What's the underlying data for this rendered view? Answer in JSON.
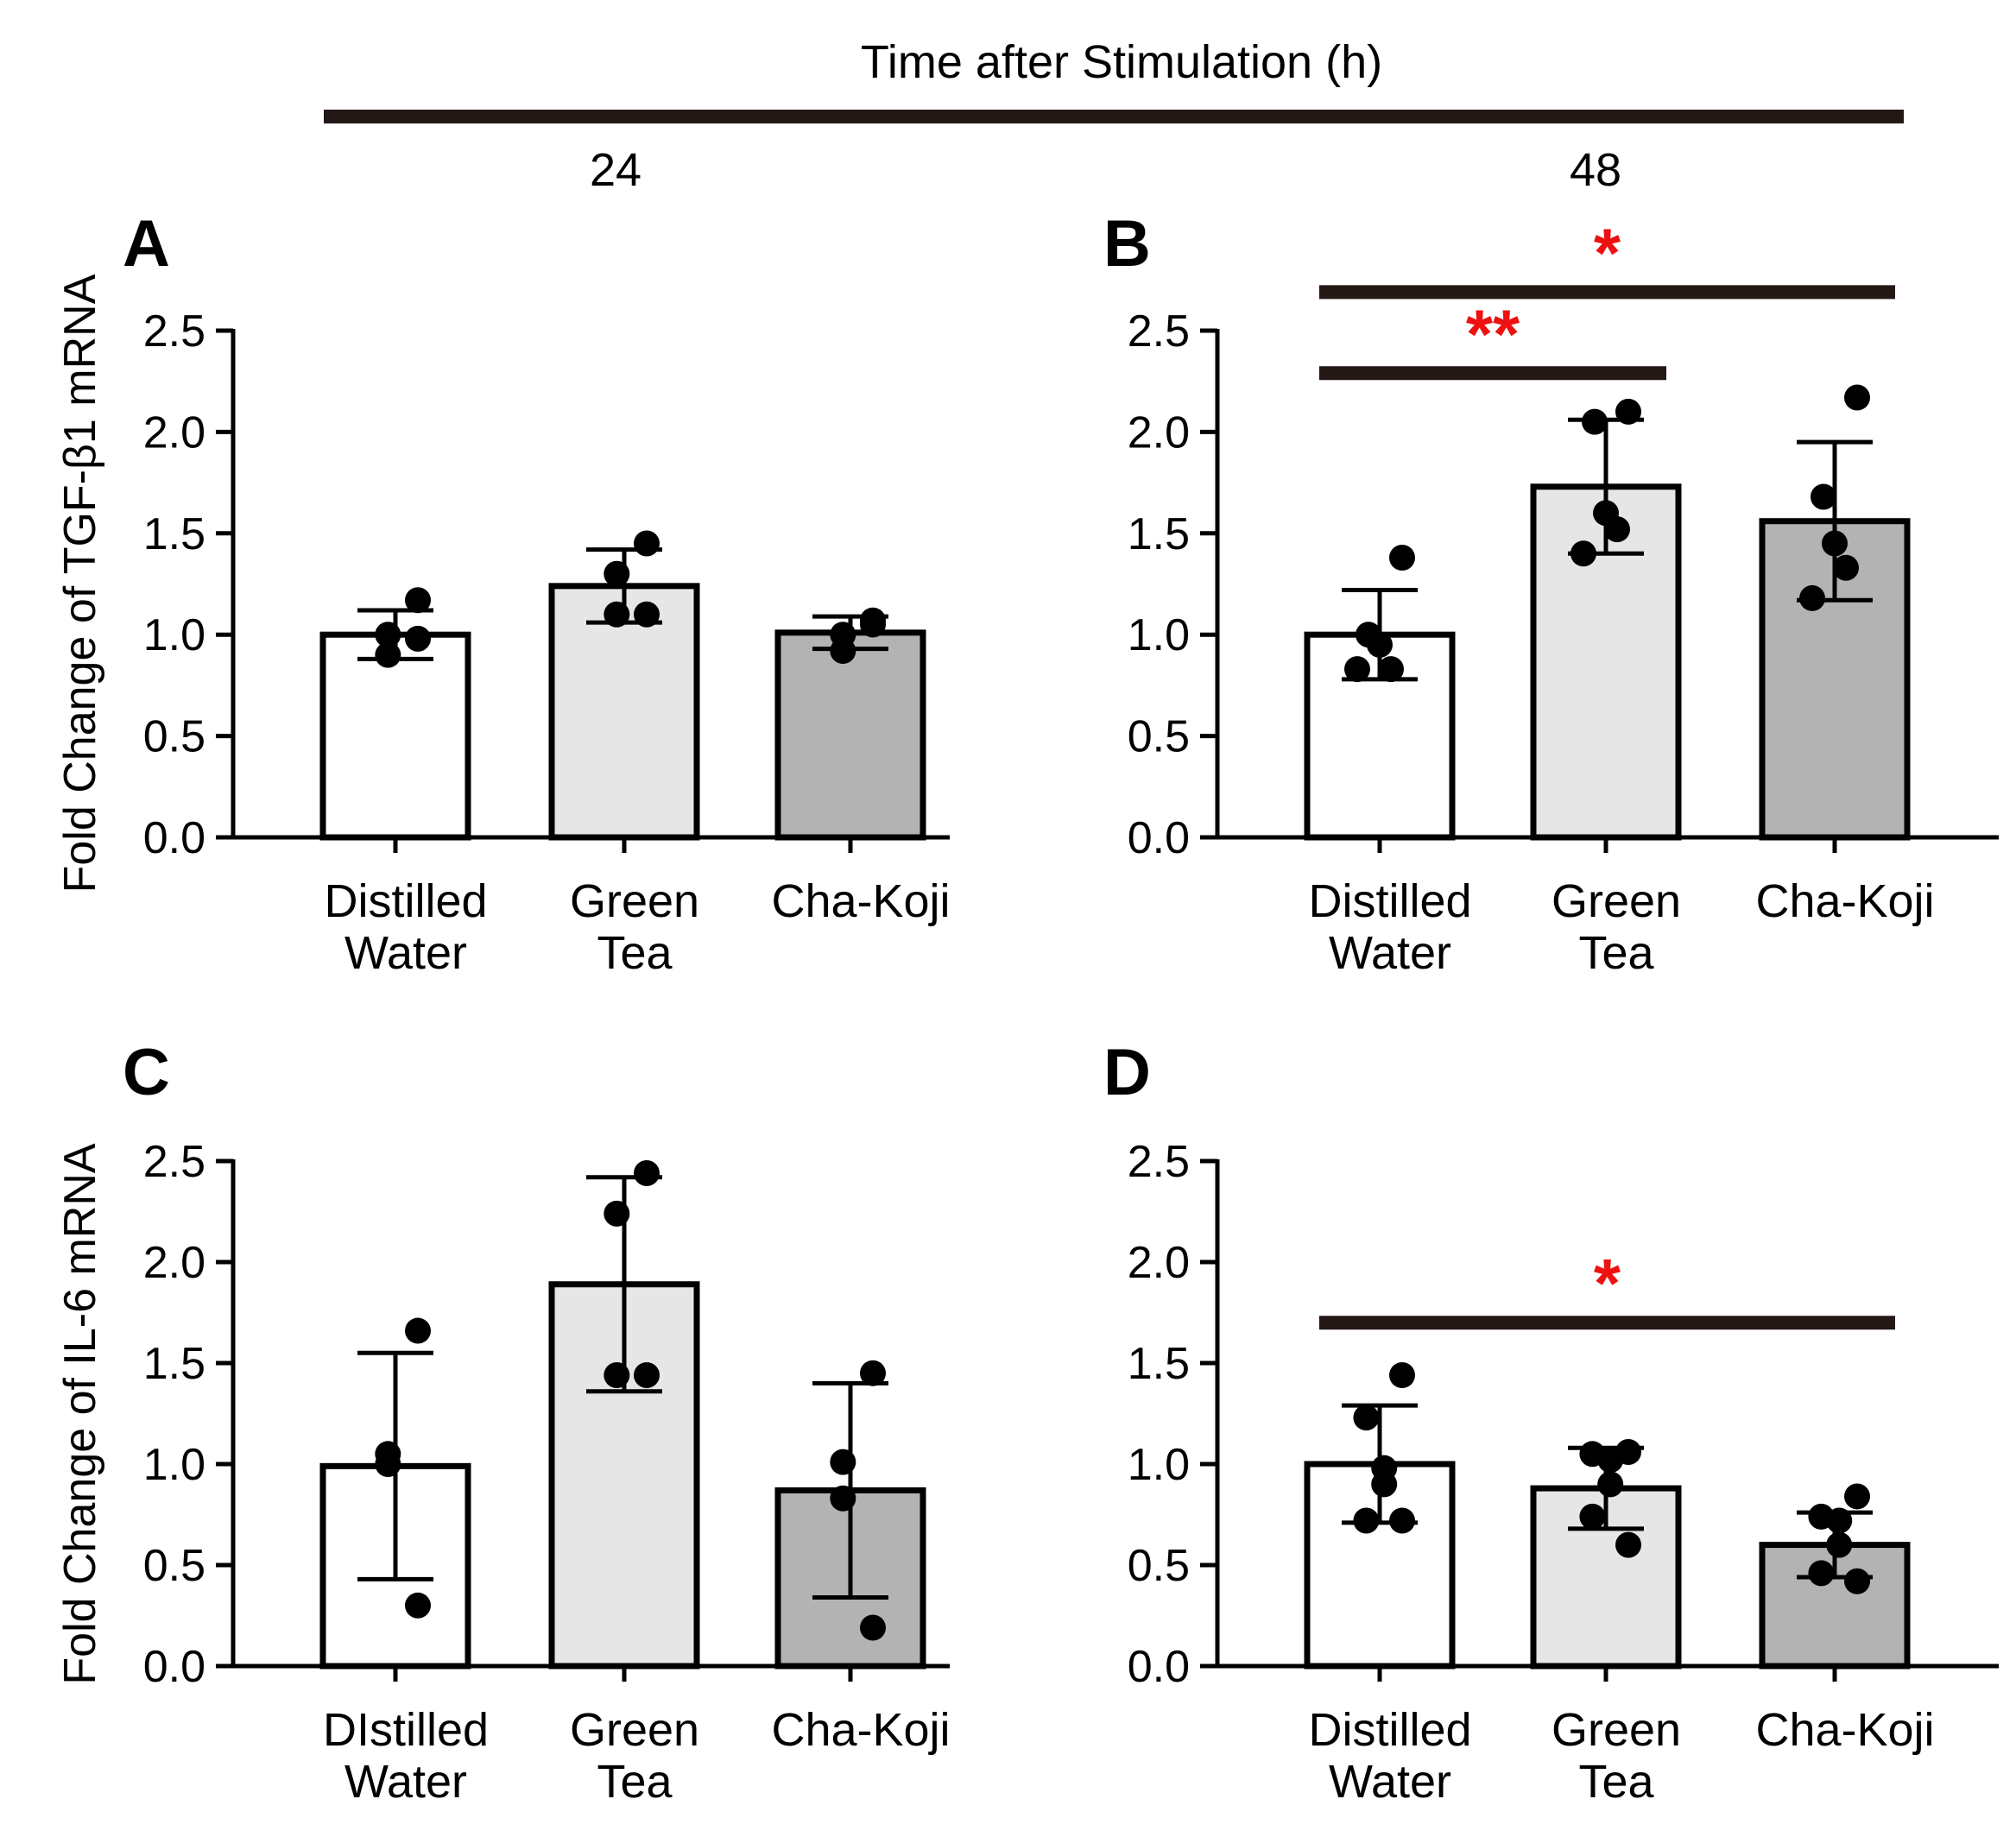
{
  "header": {
    "title": "Time after Stimulation (h)",
    "times": [
      "24",
      "48"
    ],
    "line_color": "#231815"
  },
  "colors": {
    "distilled_water": "#ffffff",
    "green_tea": "#e6e6e6",
    "cha_koji": "#b3b3b3",
    "significance": "#ee1111",
    "bracket": "#231815"
  },
  "chart_data": [
    {
      "panel": "A",
      "type": "bar",
      "ylabel": "Fold Change of TGF-β1 mRNA",
      "ylim": [
        0,
        2.5
      ],
      "yticks": [
        "0.0",
        "0.5",
        "1.0",
        "1.5",
        "2.0",
        "2.5"
      ],
      "categories": [
        [
          "Distilled",
          "Water"
        ],
        [
          "Green",
          "Tea"
        ],
        [
          "Cha-Koji"
        ]
      ],
      "values": [
        1.0,
        1.24,
        1.01
      ],
      "sd": [
        0.12,
        0.18,
        0.08
      ],
      "points": [
        [
          1.17,
          1.0,
          0.9,
          0.98
        ],
        [
          1.45,
          1.3,
          1.1,
          1.1
        ],
        [
          1.07,
          1.0,
          0.92,
          1.05
        ]
      ],
      "significance": []
    },
    {
      "panel": "B",
      "type": "bar",
      "ylabel": "",
      "ylim": [
        0,
        2.5
      ],
      "yticks": [
        "0.0",
        "0.5",
        "1.0",
        "1.5",
        "2.0",
        "2.5"
      ],
      "categories": [
        [
          "Distilled",
          "Water"
        ],
        [
          "Green",
          "Tea"
        ],
        [
          "Cha-Koji"
        ]
      ],
      "values": [
        1.0,
        1.73,
        1.56
      ],
      "sd": [
        0.22,
        0.33,
        0.39
      ],
      "points": [
        [
          1.38,
          1.0,
          0.95,
          0.83,
          0.83
        ],
        [
          2.1,
          2.05,
          1.6,
          1.52,
          1.4
        ],
        [
          2.17,
          1.68,
          1.45,
          1.33,
          1.18
        ]
      ],
      "significance": [
        {
          "from": 0,
          "to": 1,
          "label": "**",
          "y": 2.29
        },
        {
          "from": 0,
          "to": 2,
          "label": "*",
          "y": 2.69
        }
      ]
    },
    {
      "panel": "C",
      "type": "bar",
      "ylabel": "Fold Change of IL-6 mRNA",
      "ylim": [
        0,
        2.5
      ],
      "yticks": [
        "0.0",
        "0.5",
        "1.0",
        "1.5",
        "2.0",
        "2.5"
      ],
      "categories": [
        [
          "DIstilled",
          "Water"
        ],
        [
          "Green",
          "Tea"
        ],
        [
          "Cha-Koji"
        ]
      ],
      "values": [
        0.99,
        1.89,
        0.87
      ],
      "sd": [
        0.56,
        0.53,
        0.53
      ],
      "points": [
        [
          1.66,
          1.05,
          1.0,
          0.3
        ],
        [
          2.44,
          2.24,
          1.44,
          1.44
        ],
        [
          1.45,
          1.01,
          0.83,
          0.19
        ]
      ],
      "significance": []
    },
    {
      "panel": "D",
      "type": "bar",
      "ylabel": "",
      "ylim": [
        0,
        2.5
      ],
      "yticks": [
        "0.0",
        "0.5",
        "1.0",
        "1.5",
        "2.0",
        "2.5"
      ],
      "categories": [
        [
          "Distilled",
          "Water"
        ],
        [
          "Green",
          "Tea"
        ],
        [
          "Cha-Koji"
        ]
      ],
      "values": [
        1.0,
        0.88,
        0.6
      ],
      "sd": [
        0.29,
        0.2,
        0.16
      ],
      "points": [
        [
          1.44,
          1.23,
          0.98,
          0.9,
          0.72,
          0.72
        ],
        [
          1.06,
          1.05,
          1.02,
          0.9,
          0.74,
          0.6
        ],
        [
          0.84,
          0.74,
          0.72,
          0.6,
          0.46,
          0.42
        ]
      ],
      "significance": [
        {
          "from": 0,
          "to": 2,
          "label": "*",
          "y": 1.7
        }
      ]
    }
  ]
}
